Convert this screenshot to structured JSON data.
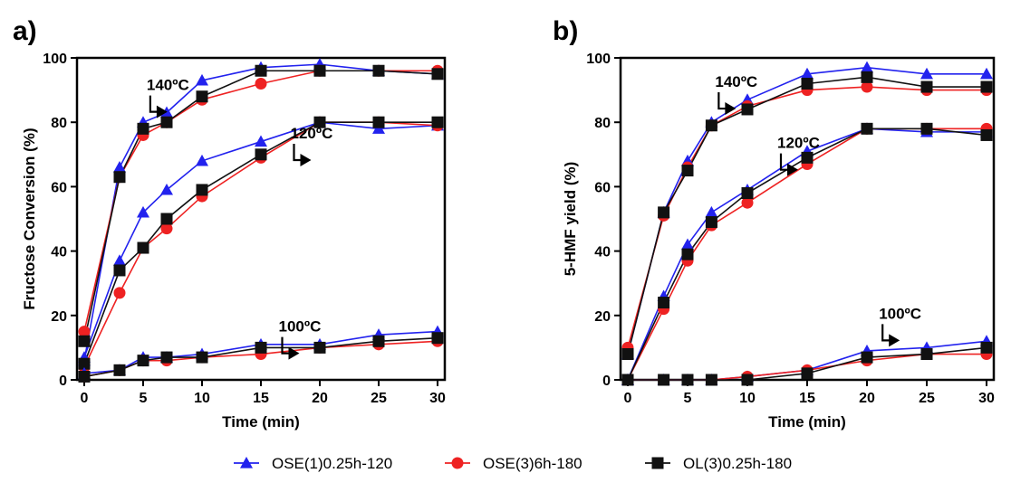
{
  "legend": [
    {
      "name": "OSE(1)0.25h-120",
      "color": "#2222ee",
      "marker": "triangle"
    },
    {
      "name": "OSE(3)6h-180",
      "color": "#ee2222",
      "marker": "circle"
    },
    {
      "name": "OL(3)0.25h-180",
      "color": "#111111",
      "marker": "square"
    }
  ],
  "chart_data": [
    {
      "panel": "a)",
      "type": "line",
      "xlabel": "Time (min)",
      "ylabel": "Fructose Conversion (%)",
      "xlim": [
        0,
        30
      ],
      "ylim": [
        0,
        100
      ],
      "xticks": [
        0,
        5,
        10,
        15,
        20,
        25,
        30
      ],
      "yticks": [
        0,
        20,
        40,
        60,
        80,
        100
      ],
      "x": [
        0,
        3,
        5,
        7,
        10,
        15,
        20,
        25,
        30
      ],
      "annotations": [
        {
          "text": "140ºC",
          "x": 5.3,
          "y": 90
        },
        {
          "text": "120ºC",
          "x": 17.5,
          "y": 75
        },
        {
          "text": "100ºC",
          "x": 16.5,
          "y": 15
        }
      ],
      "groups": [
        {
          "temperature": "140ºC",
          "series": [
            {
              "name": "OSE(1)0.25h-120",
              "values": [
                6,
                66,
                80,
                83,
                93,
                97,
                98,
                96,
                95
              ]
            },
            {
              "name": "OSE(3)6h-180",
              "values": [
                15,
                63,
                76,
                80,
                87,
                92,
                96,
                96,
                96
              ]
            },
            {
              "name": "OL(3)0.25h-180",
              "values": [
                12,
                63,
                78,
                80,
                88,
                96,
                96,
                96,
                95
              ]
            }
          ]
        },
        {
          "temperature": "120ºC",
          "series": [
            {
              "name": "OSE(1)0.25h-120",
              "values": [
                7,
                37,
                52,
                59,
                68,
                74,
                80,
                78,
                79
              ]
            },
            {
              "name": "OSE(3)6h-180",
              "values": [
                4,
                27,
                41,
                47,
                57,
                69,
                80,
                80,
                79
              ]
            },
            {
              "name": "OL(3)0.25h-180",
              "values": [
                5,
                34,
                41,
                50,
                59,
                70,
                80,
                80,
                80
              ]
            }
          ]
        },
        {
          "temperature": "100ºC",
          "series": [
            {
              "name": "OSE(1)0.25h-120",
              "values": [
                2,
                3,
                7,
                7,
                8,
                11,
                11,
                14,
                15
              ]
            },
            {
              "name": "OSE(3)6h-180",
              "values": [
                1,
                3,
                6,
                6,
                7,
                8,
                10,
                11,
                12
              ]
            },
            {
              "name": "OL(3)0.25h-180",
              "values": [
                1,
                3,
                6,
                7,
                7,
                10,
                10,
                12,
                13
              ]
            }
          ]
        }
      ]
    },
    {
      "panel": "b)",
      "type": "line",
      "xlabel": "Time (min)",
      "ylabel": "5-HMF yield (%)",
      "xlim": [
        0,
        30
      ],
      "ylim": [
        0,
        100
      ],
      "xticks": [
        0,
        5,
        10,
        15,
        20,
        25,
        30
      ],
      "yticks": [
        0,
        20,
        40,
        60,
        80,
        100
      ],
      "x": [
        0,
        3,
        5,
        7,
        10,
        15,
        20,
        25,
        30
      ],
      "annotations": [
        {
          "text": "140ºC",
          "x": 7.3,
          "y": 91
        },
        {
          "text": "120ºC",
          "x": 12.5,
          "y": 72
        },
        {
          "text": "100ºC",
          "x": 21,
          "y": 19
        }
      ],
      "groups": [
        {
          "temperature": "140ºC",
          "series": [
            {
              "name": "OSE(1)0.25h-120",
              "values": [
                8,
                52,
                68,
                80,
                87,
                95,
                97,
                95,
                95
              ]
            },
            {
              "name": "OSE(3)6h-180",
              "values": [
                10,
                51,
                66,
                79,
                85,
                90,
                91,
                90,
                90
              ]
            },
            {
              "name": "OL(3)0.25h-180",
              "values": [
                8,
                52,
                65,
                79,
                84,
                92,
                94,
                91,
                91
              ]
            }
          ]
        },
        {
          "temperature": "120ºC",
          "series": [
            {
              "name": "OSE(1)0.25h-120",
              "values": [
                0,
                26,
                42,
                52,
                59,
                71,
                78,
                77,
                77
              ]
            },
            {
              "name": "OSE(3)6h-180",
              "values": [
                0,
                22,
                37,
                48,
                55,
                67,
                78,
                78,
                78
              ]
            },
            {
              "name": "OL(3)0.25h-180",
              "values": [
                0,
                24,
                39,
                49,
                58,
                69,
                78,
                78,
                76
              ]
            }
          ]
        },
        {
          "temperature": "100ºC",
          "series": [
            {
              "name": "OSE(1)0.25h-120",
              "values": [
                0,
                0,
                0,
                0,
                1,
                3,
                9,
                10,
                12
              ]
            },
            {
              "name": "OSE(3)6h-180",
              "values": [
                0,
                0,
                0,
                0,
                1,
                3,
                6,
                8,
                8
              ]
            },
            {
              "name": "OL(3)0.25h-180",
              "values": [
                0,
                0,
                0,
                0,
                0,
                2,
                7,
                8,
                10
              ]
            }
          ]
        }
      ]
    }
  ]
}
